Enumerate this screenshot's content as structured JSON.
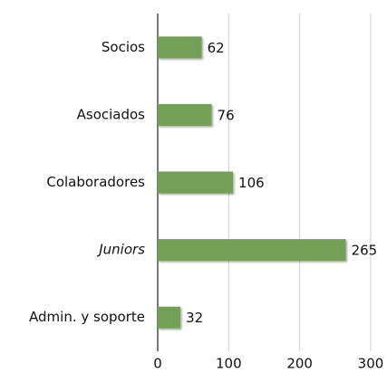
{
  "chart_data": {
    "type": "barh",
    "categories": [
      "Socios",
      "Asociados",
      "Colaboradores",
      "Juniors",
      "Admin. y soporte"
    ],
    "values": [
      62,
      76,
      106,
      265,
      32
    ],
    "color": "#72a056",
    "xlim": [
      0,
      300
    ],
    "xticks": [
      0,
      100,
      200,
      300
    ],
    "grid": true,
    "italic_categories": [
      3
    ]
  }
}
